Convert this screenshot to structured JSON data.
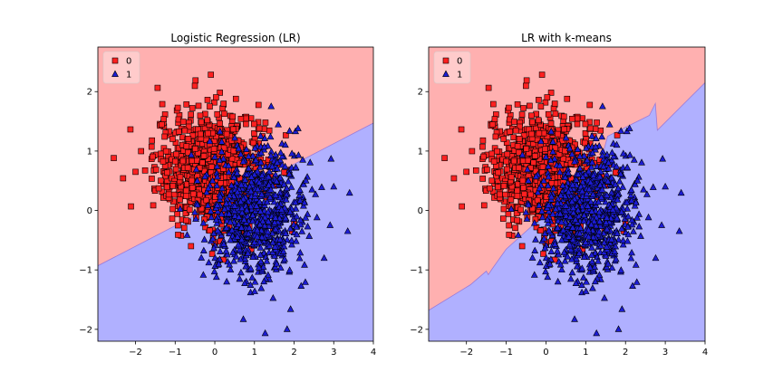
{
  "chart_data": [
    {
      "type": "scatter",
      "title": "Logistic Regression (LR)",
      "xlim": [
        -2.95,
        4.0
      ],
      "ylim": [
        -2.2,
        2.75
      ],
      "xticks": [
        "−2",
        "−1",
        "0",
        "1",
        "2",
        "3",
        "4"
      ],
      "yticks": [
        "−2",
        "−1",
        "0",
        "1",
        "2"
      ],
      "xtick_values": [
        -2,
        -1,
        0,
        1,
        2,
        3,
        4
      ],
      "ytick_values": [
        -2,
        -1,
        0,
        1,
        2
      ],
      "grid": false,
      "legend_position": "top-left",
      "legend": [
        "0",
        "1"
      ],
      "series": [
        {
          "name": "0",
          "marker": "square",
          "color": "#ff2020",
          "center": [
            -0.1,
            0.7
          ],
          "spread": [
            0.7,
            0.5
          ],
          "count": 850,
          "outliers": [
            [
              -2.0,
              0.65
            ],
            [
              1.2,
              1.25
            ],
            [
              -0.6,
              -0.6
            ]
          ]
        },
        {
          "name": "1",
          "marker": "triangle",
          "color": "#1c1cd4",
          "center": [
            1.05,
            -0.05
          ],
          "spread": [
            0.62,
            0.55
          ],
          "count": 800,
          "outliers": [
            [
              3.0,
              0.4
            ],
            [
              2.1,
              1.38
            ],
            [
              0.3,
              -1.2
            ],
            [
              2.3,
              0.5
            ]
          ]
        }
      ],
      "decision_regions": {
        "class_0_color": "#ffb0b0",
        "class_1_color": "#b0b0ff",
        "boundary": [
          [
            -2.95,
            -0.93
          ],
          [
            4.0,
            1.47
          ]
        ]
      }
    },
    {
      "type": "scatter",
      "title": "LR with k-means",
      "xlim": [
        -2.95,
        4.0
      ],
      "ylim": [
        -2.2,
        2.75
      ],
      "xticks": [
        "−2",
        "−1",
        "0",
        "1",
        "2",
        "3",
        "4"
      ],
      "yticks": [
        "−2",
        "−1",
        "0",
        "1",
        "2"
      ],
      "xtick_values": [
        -2,
        -1,
        0,
        1,
        2,
        3,
        4
      ],
      "ytick_values": [
        -2,
        -1,
        0,
        1,
        2
      ],
      "grid": false,
      "legend_position": "top-left",
      "legend": [
        "0",
        "1"
      ],
      "series": [
        {
          "name": "0",
          "marker": "square",
          "color": "#ff2020",
          "center": [
            -0.1,
            0.7
          ],
          "spread": [
            0.7,
            0.5
          ],
          "count": 850,
          "outliers": [
            [
              -2.0,
              0.65
            ],
            [
              1.2,
              1.25
            ],
            [
              -0.6,
              -0.6
            ]
          ]
        },
        {
          "name": "1",
          "marker": "triangle",
          "color": "#1c1cd4",
          "center": [
            1.05,
            -0.05
          ],
          "spread": [
            0.62,
            0.55
          ],
          "count": 800,
          "outliers": [
            [
              3.0,
              0.4
            ],
            [
              2.1,
              1.38
            ],
            [
              0.3,
              -1.2
            ],
            [
              2.3,
              0.5
            ]
          ]
        }
      ],
      "decision_regions": {
        "class_0_color": "#ffb0b0",
        "class_1_color": "#b0b0ff",
        "boundary": [
          [
            -2.95,
            -1.68
          ],
          [
            -1.9,
            -1.25
          ],
          [
            -1.5,
            -1.02
          ],
          [
            -1.45,
            -1.08
          ],
          [
            -1.35,
            -0.98
          ],
          [
            -1.0,
            -0.65
          ],
          [
            0.0,
            -0.05
          ],
          [
            0.7,
            0.45
          ],
          [
            1.4,
            0.85
          ],
          [
            1.45,
            1.0
          ],
          [
            1.55,
            1.25
          ],
          [
            2.0,
            1.4
          ],
          [
            2.6,
            1.6
          ],
          [
            2.75,
            1.8
          ],
          [
            2.8,
            1.35
          ],
          [
            4.0,
            2.15
          ]
        ]
      }
    }
  ]
}
